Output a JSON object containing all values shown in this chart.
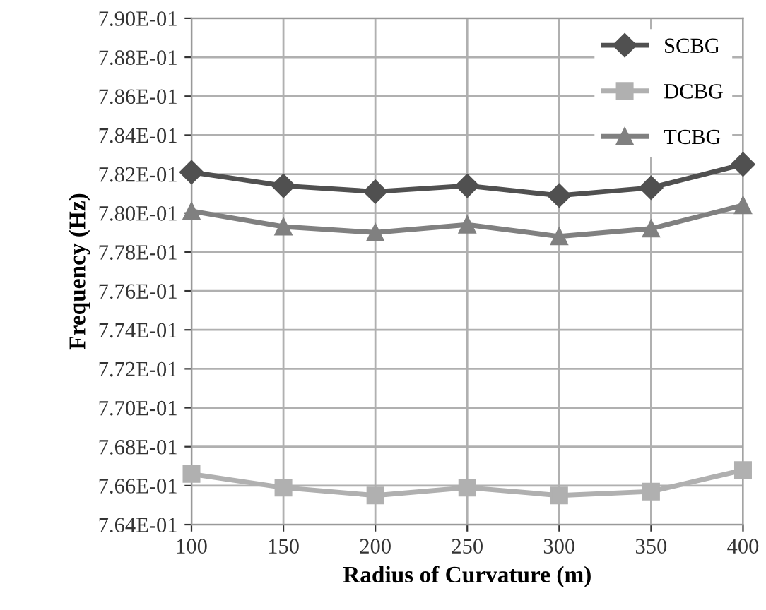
{
  "chart_data": {
    "type": "line",
    "xlabel": "Radius of Curvature (m)",
    "ylabel": "Frequency (Hz)",
    "x": [
      100,
      150,
      200,
      250,
      300,
      350,
      400
    ],
    "series": [
      {
        "name": "SCBG",
        "color": "#505050",
        "marker": "diamond",
        "values": [
          0.7821,
          0.7814,
          0.7811,
          0.7814,
          0.7809,
          0.7813,
          0.7825
        ]
      },
      {
        "name": "DCBG",
        "color": "#b0b0b0",
        "marker": "square",
        "values": [
          0.7666,
          0.7659,
          0.7655,
          0.7659,
          0.7655,
          0.7657,
          0.7668
        ]
      },
      {
        "name": "TCBG",
        "color": "#808080",
        "marker": "triangle",
        "values": [
          0.7801,
          0.7793,
          0.779,
          0.7794,
          0.7788,
          0.7792,
          0.7804
        ]
      }
    ],
    "xlim": [
      100,
      400
    ],
    "xticks": [
      100,
      150,
      200,
      250,
      300,
      350,
      400
    ],
    "ylim": [
      0.764,
      0.79
    ],
    "yticks": [
      {
        "value": 0.764,
        "label": "7.64E-01"
      },
      {
        "value": 0.766,
        "label": "7.66E-01"
      },
      {
        "value": 0.768,
        "label": "7.68E-01"
      },
      {
        "value": 0.77,
        "label": "7.70E-01"
      },
      {
        "value": 0.772,
        "label": "7.72E-01"
      },
      {
        "value": 0.774,
        "label": "7.74E-01"
      },
      {
        "value": 0.776,
        "label": "7.76E-01"
      },
      {
        "value": 0.778,
        "label": "7.78E-01"
      },
      {
        "value": 0.78,
        "label": "7.80E-01"
      },
      {
        "value": 0.782,
        "label": "7.82E-01"
      },
      {
        "value": 0.784,
        "label": "7.84E-01"
      },
      {
        "value": 0.786,
        "label": "7.86E-01"
      },
      {
        "value": 0.788,
        "label": "7.88E-01"
      },
      {
        "value": 0.79,
        "label": "7.90E-01"
      }
    ],
    "grid": true,
    "legend": "top right",
    "line_style": "solid"
  }
}
